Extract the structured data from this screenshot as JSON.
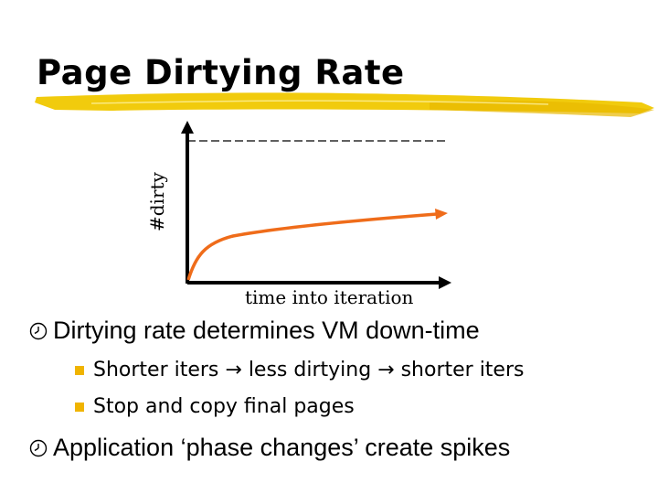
{
  "slide": {
    "title": "Page Dirtying Rate",
    "colors": {
      "brush": "#f0c800",
      "curve": "#ef6c1a",
      "axis": "#000000",
      "bullet_square": "#f0b400"
    }
  },
  "diagram": {
    "y_axis_label": "#dirty",
    "x_axis_label": "time into iteration"
  },
  "bullets": [
    {
      "text": "Dirtying rate determines VM down-time",
      "icon": "clock-icon",
      "sub": [
        {
          "text": "Shorter iters → less dirtying → shorter iters"
        },
        {
          "text": "Stop and copy final pages"
        }
      ]
    },
    {
      "text": "Application ‘phase changes’ create spikes",
      "icon": "clock-icon",
      "sub": []
    }
  ]
}
